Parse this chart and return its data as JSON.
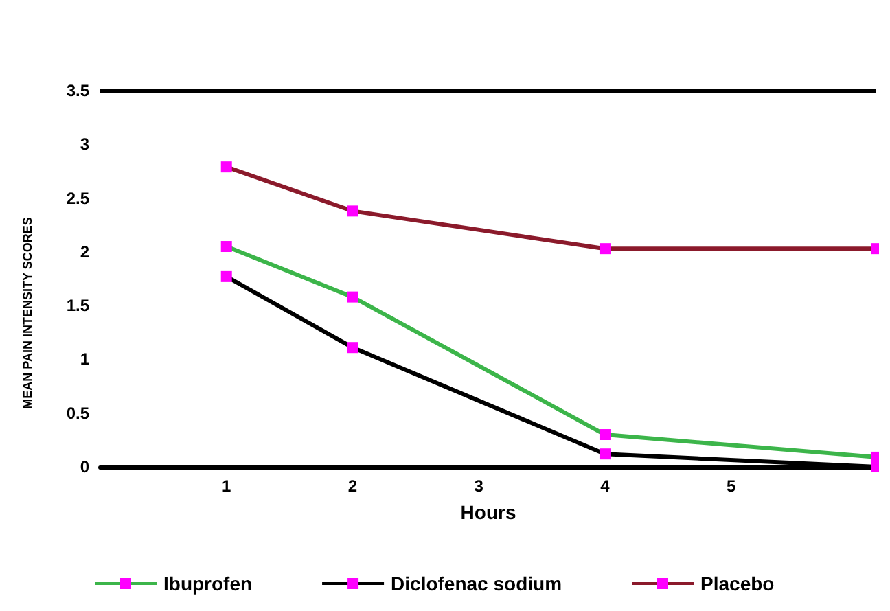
{
  "chart_data": {
    "type": "line",
    "xlabel": "Hours",
    "ylabel": "MEAN PAIN INTENSITY SCORES",
    "xlim": [
      0,
      6.15
    ],
    "xticks": [
      1,
      2,
      3,
      4,
      5
    ],
    "ylim": [
      0,
      3.5
    ],
    "yticks": [
      0,
      0.5,
      1,
      1.5,
      2,
      2.5,
      3,
      3.5
    ],
    "grid": false,
    "legend": "bottom",
    "marker": "square",
    "line_style": "solid",
    "ref_lines": [
      {
        "axis": "y",
        "value": 3.5,
        "color": "#000000"
      }
    ],
    "series": [
      {
        "name": "Ibuprofen",
        "color": "#3cb54a",
        "x": [
          1,
          2,
          4,
          6.15
        ],
        "values": [
          2.05,
          1.58,
          0.3,
          0.09
        ]
      },
      {
        "name": "Diclofenac sodium",
        "color": "#000000",
        "x": [
          1,
          2,
          4,
          6.15
        ],
        "values": [
          1.77,
          1.11,
          0.12,
          0
        ]
      },
      {
        "name": "Placebo",
        "color": "#8b1a2b",
        "x": [
          1,
          2,
          4,
          6.15
        ],
        "values": [
          2.79,
          2.38,
          2.03,
          2.03
        ]
      }
    ]
  }
}
